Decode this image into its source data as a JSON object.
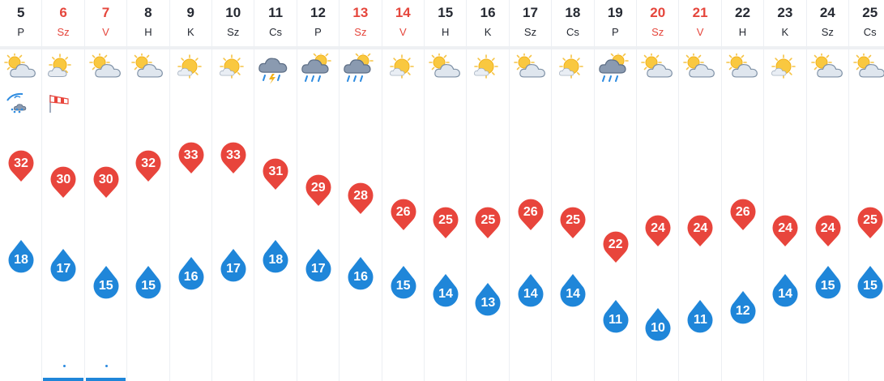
{
  "colors": {
    "max_temp": "#e8453c",
    "min_temp": "#1f86d9",
    "weekend": "#e5463c",
    "text": "#262a33"
  },
  "days": [
    {
      "date": "5",
      "weekday": "P",
      "weekend": false,
      "icon": "partly-cloudy-icon",
      "extras": [
        "thunder-rain-icon"
      ],
      "max": "32",
      "min": "18",
      "dot": false,
      "selected": false
    },
    {
      "date": "6",
      "weekday": "Sz",
      "weekend": true,
      "icon": "sun-cloud-icon",
      "extras": [
        "windsock-icon"
      ],
      "max": "30",
      "min": "17",
      "dot": true,
      "selected": true
    },
    {
      "date": "7",
      "weekday": "V",
      "weekend": true,
      "icon": "partly-cloudy-icon",
      "extras": [],
      "max": "30",
      "min": "15",
      "dot": true,
      "selected": true
    },
    {
      "date": "8",
      "weekday": "H",
      "weekend": false,
      "icon": "partly-cloudy-icon",
      "extras": [],
      "max": "32",
      "min": "15",
      "dot": false,
      "selected": false
    },
    {
      "date": "9",
      "weekday": "K",
      "weekend": false,
      "icon": "sunny-icon",
      "extras": [],
      "max": "33",
      "min": "16",
      "dot": false,
      "selected": false
    },
    {
      "date": "10",
      "weekday": "Sz",
      "weekend": false,
      "icon": "sunny-icon",
      "extras": [],
      "max": "33",
      "min": "17",
      "dot": false,
      "selected": false
    },
    {
      "date": "11",
      "weekday": "Cs",
      "weekend": false,
      "icon": "thunderstorm-icon",
      "extras": [],
      "max": "31",
      "min": "18",
      "dot": false,
      "selected": false
    },
    {
      "date": "12",
      "weekday": "P",
      "weekend": false,
      "icon": "sun-rain-icon",
      "extras": [],
      "max": "29",
      "min": "17",
      "dot": false,
      "selected": false
    },
    {
      "date": "13",
      "weekday": "Sz",
      "weekend": true,
      "icon": "sun-rain-icon",
      "extras": [],
      "max": "28",
      "min": "16",
      "dot": false,
      "selected": false
    },
    {
      "date": "14",
      "weekday": "V",
      "weekend": true,
      "icon": "sunny-icon",
      "extras": [],
      "max": "26",
      "min": "15",
      "dot": false,
      "selected": false
    },
    {
      "date": "15",
      "weekday": "H",
      "weekend": false,
      "icon": "partly-cloudy-icon",
      "extras": [],
      "max": "25",
      "min": "14",
      "dot": false,
      "selected": false
    },
    {
      "date": "16",
      "weekday": "K",
      "weekend": false,
      "icon": "sunny-icon",
      "extras": [],
      "max": "25",
      "min": "13",
      "dot": false,
      "selected": false
    },
    {
      "date": "17",
      "weekday": "Sz",
      "weekend": false,
      "icon": "partly-cloudy-icon",
      "extras": [],
      "max": "26",
      "min": "14",
      "dot": false,
      "selected": false
    },
    {
      "date": "18",
      "weekday": "Cs",
      "weekend": false,
      "icon": "sunny-icon",
      "extras": [],
      "max": "25",
      "min": "14",
      "dot": false,
      "selected": false
    },
    {
      "date": "19",
      "weekday": "P",
      "weekend": false,
      "icon": "sun-rain-icon",
      "extras": [],
      "max": "22",
      "min": "11",
      "dot": false,
      "selected": false
    },
    {
      "date": "20",
      "weekday": "Sz",
      "weekend": true,
      "icon": "partly-cloudy-icon",
      "extras": [],
      "max": "24",
      "min": "10",
      "dot": false,
      "selected": false
    },
    {
      "date": "21",
      "weekday": "V",
      "weekend": true,
      "icon": "partly-cloudy-icon",
      "extras": [],
      "max": "24",
      "min": "11",
      "dot": false,
      "selected": false
    },
    {
      "date": "22",
      "weekday": "H",
      "weekend": false,
      "icon": "partly-cloudy-icon",
      "extras": [],
      "max": "26",
      "min": "12",
      "dot": false,
      "selected": false
    },
    {
      "date": "23",
      "weekday": "K",
      "weekend": false,
      "icon": "sunny-icon",
      "extras": [],
      "max": "24",
      "min": "14",
      "dot": false,
      "selected": false
    },
    {
      "date": "24",
      "weekday": "Sz",
      "weekend": false,
      "icon": "partly-cloudy-icon",
      "extras": [],
      "max": "24",
      "min": "15",
      "dot": false,
      "selected": false
    },
    {
      "date": "25",
      "weekday": "Cs",
      "weekend": false,
      "icon": "partly-cloudy-icon",
      "extras": [],
      "max": "25",
      "min": "15",
      "dot": false,
      "selected": false
    }
  ]
}
